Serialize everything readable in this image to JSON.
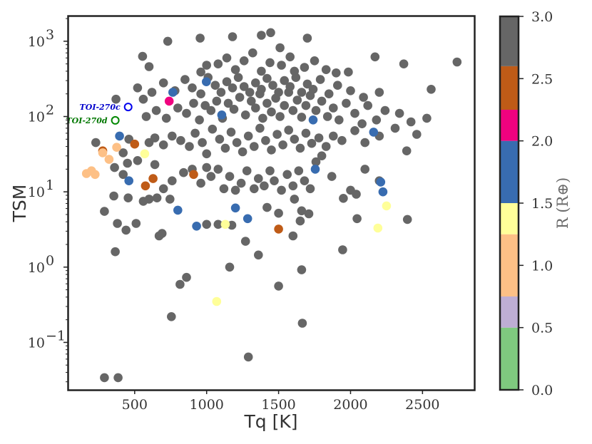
{
  "chart_data": {
    "type": "scatter",
    "xlabel": "Tq [K]",
    "ylabel": "TSM",
    "xlim": [
      40,
      2860
    ],
    "ylim_log10": [
      -1.63,
      3.33
    ],
    "yscale": "log",
    "grid": false,
    "x_ticks": [
      500,
      1000,
      1500,
      2000,
      2500
    ],
    "x_tick_labels": [
      "500",
      "1000",
      "1500",
      "2000",
      "2500"
    ],
    "y_ticks_log10": [
      -1,
      0,
      1,
      2,
      3
    ],
    "y_tick_labels": [
      "10",
      "10",
      "10",
      "10",
      "10"
    ],
    "y_tick_exponents": [
      "−1",
      "0",
      "1",
      "2",
      "3"
    ],
    "colorbar": {
      "label": "R (R⊕)",
      "range": [
        0,
        3.0
      ],
      "ticks": [
        0.0,
        0.5,
        1.0,
        1.5,
        2.0,
        2.5,
        3.0
      ],
      "tick_labels": [
        "0.0",
        "0.5",
        "1.0",
        "1.5",
        "2.0",
        "2.5",
        "3.0"
      ],
      "bins": [
        {
          "from": 0.0,
          "to": 0.5,
          "color": "#7fc97f"
        },
        {
          "from": 0.5,
          "to": 0.75,
          "color": "#beaed4"
        },
        {
          "from": 0.75,
          "to": 1.25,
          "color": "#fdc086"
        },
        {
          "from": 1.25,
          "to": 1.5,
          "color": "#ffff99"
        },
        {
          "from": 1.5,
          "to": 2.0,
          "color": "#386cb0"
        },
        {
          "from": 2.0,
          "to": 2.25,
          "color": "#f0027f"
        },
        {
          "from": 2.25,
          "to": 2.6,
          "color": "#bf5b17"
        },
        {
          "from": 2.6,
          "to": 3.0,
          "color": "#666666"
        }
      ]
    },
    "annotations": [
      {
        "text": "TOI-270c",
        "x": 455,
        "y": 134,
        "color": "#0000cc"
      },
      {
        "text": "TOI-270d",
        "x": 365,
        "y": 89,
        "color": "#007700"
      }
    ],
    "highlighted_points": [
      {
        "name": "TOI-270c",
        "x": 455,
        "y": 134,
        "edge_color": "#0000ee"
      },
      {
        "name": "TOI-270d",
        "x": 365,
        "y": 89,
        "edge_color": "#008800"
      }
    ],
    "colored_points": [
      {
        "x": 395,
        "y": 55,
        "r": 1.7
      },
      {
        "x": 460,
        "y": 14,
        "r": 1.7
      },
      {
        "x": 765,
        "y": 210,
        "r": 1.7
      },
      {
        "x": 800,
        "y": 5.7,
        "r": 1.7
      },
      {
        "x": 930,
        "y": 3.5,
        "r": 1.7
      },
      {
        "x": 1105,
        "y": 105,
        "r": 1.7
      },
      {
        "x": 1200,
        "y": 6.1,
        "r": 1.7
      },
      {
        "x": 1285,
        "y": 4.4,
        "r": 1.7
      },
      {
        "x": 1740,
        "y": 90,
        "r": 1.7
      },
      {
        "x": 1755,
        "y": 20,
        "r": 1.7
      },
      {
        "x": 2160,
        "y": 62,
        "r": 1.7
      },
      {
        "x": 2210,
        "y": 13.5,
        "r": 1.7
      },
      {
        "x": 2225,
        "y": 10,
        "r": 1.7
      },
      {
        "x": 998,
        "y": 290,
        "r": 1.7
      },
      {
        "x": 740,
        "y": 160,
        "r": 2.1
      },
      {
        "x": 278,
        "y": 35,
        "r": 2.5
      },
      {
        "x": 500,
        "y": 43,
        "r": 2.5
      },
      {
        "x": 575,
        "y": 12,
        "r": 2.5
      },
      {
        "x": 628,
        "y": 15,
        "r": 2.5
      },
      {
        "x": 910,
        "y": 17,
        "r": 2.5
      },
      {
        "x": 1500,
        "y": 3.2,
        "r": 2.5
      },
      {
        "x": 165,
        "y": 17.5,
        "r": 1.0
      },
      {
        "x": 200,
        "y": 19,
        "r": 1.0
      },
      {
        "x": 225,
        "y": 17,
        "r": 1.0
      },
      {
        "x": 278,
        "y": 33,
        "r": 1.0
      },
      {
        "x": 322,
        "y": 27,
        "r": 1.0
      },
      {
        "x": 375,
        "y": 39,
        "r": 1.0
      },
      {
        "x": 570,
        "y": 32,
        "r": 1.4
      },
      {
        "x": 1130,
        "y": 3.7,
        "r": 1.4
      },
      {
        "x": 1070,
        "y": 0.35,
        "r": 1.4
      },
      {
        "x": 2190,
        "y": 3.3,
        "r": 1.4
      },
      {
        "x": 2250,
        "y": 6.5,
        "r": 1.4
      }
    ],
    "gray_points": [
      {
        "x": 290,
        "y": 0.034
      },
      {
        "x": 385,
        "y": 0.034
      },
      {
        "x": 1290,
        "y": 0.064
      },
      {
        "x": 1665,
        "y": 0.18
      },
      {
        "x": 755,
        "y": 0.22
      },
      {
        "x": 1500,
        "y": 0.56
      },
      {
        "x": 815,
        "y": 0.59
      },
      {
        "x": 860,
        "y": 0.73
      },
      {
        "x": 1660,
        "y": 0.92
      },
      {
        "x": 1160,
        "y": 1.0
      },
      {
        "x": 1360,
        "y": 1.45
      },
      {
        "x": 1945,
        "y": 1.7
      },
      {
        "x": 365,
        "y": 1.6
      },
      {
        "x": 1270,
        "y": 2.2
      },
      {
        "x": 1600,
        "y": 2.6
      },
      {
        "x": 670,
        "y": 2.6
      },
      {
        "x": 690,
        "y": 2.8
      },
      {
        "x": 440,
        "y": 3.1
      },
      {
        "x": 380,
        "y": 3.8
      },
      {
        "x": 510,
        "y": 3.8
      },
      {
        "x": 1000,
        "y": 3.7
      },
      {
        "x": 1080,
        "y": 3.7
      },
      {
        "x": 1175,
        "y": 3.6
      },
      {
        "x": 1650,
        "y": 4.1
      },
      {
        "x": 1500,
        "y": 5.2
      },
      {
        "x": 1710,
        "y": 5.1
      },
      {
        "x": 2045,
        "y": 4.4
      },
      {
        "x": 2395,
        "y": 4.3
      },
      {
        "x": 290,
        "y": 5.5
      },
      {
        "x": 455,
        "y": 8.3
      },
      {
        "x": 600,
        "y": 8.0
      },
      {
        "x": 655,
        "y": 8.3
      },
      {
        "x": 745,
        "y": 8.0
      },
      {
        "x": 1420,
        "y": 6.2
      },
      {
        "x": 1610,
        "y": 8.0
      },
      {
        "x": 1660,
        "y": 5.6
      },
      {
        "x": 1950,
        "y": 8.2
      },
      {
        "x": 2040,
        "y": 9.3
      },
      {
        "x": 355,
        "y": 8.8
      },
      {
        "x": 560,
        "y": 7.5
      },
      {
        "x": 420,
        "y": 17
      },
      {
        "x": 450,
        "y": 24
      },
      {
        "x": 360,
        "y": 21
      },
      {
        "x": 520,
        "y": 26
      },
      {
        "x": 640,
        "y": 23
      },
      {
        "x": 700,
        "y": 11
      },
      {
        "x": 760,
        "y": 14
      },
      {
        "x": 840,
        "y": 18
      },
      {
        "x": 900,
        "y": 20
      },
      {
        "x": 960,
        "y": 13
      },
      {
        "x": 1000,
        "y": 21
      },
      {
        "x": 1030,
        "y": 16
      },
      {
        "x": 1080,
        "y": 20
      },
      {
        "x": 1120,
        "y": 11
      },
      {
        "x": 1160,
        "y": 16
      },
      {
        "x": 1200,
        "y": 10.5
      },
      {
        "x": 1240,
        "y": 13
      },
      {
        "x": 1280,
        "y": 19
      },
      {
        "x": 1330,
        "y": 11
      },
      {
        "x": 1360,
        "y": 15
      },
      {
        "x": 1400,
        "y": 12
      },
      {
        "x": 1440,
        "y": 19
      },
      {
        "x": 1470,
        "y": 14
      },
      {
        "x": 1520,
        "y": 10.5
      },
      {
        "x": 1560,
        "y": 17
      },
      {
        "x": 1600,
        "y": 12
      },
      {
        "x": 1640,
        "y": 19
      },
      {
        "x": 1680,
        "y": 14
      },
      {
        "x": 1720,
        "y": 11
      },
      {
        "x": 1760,
        "y": 25
      },
      {
        "x": 1800,
        "y": 30
      },
      {
        "x": 1870,
        "y": 16
      },
      {
        "x": 2000,
        "y": 10.5
      },
      {
        "x": 2100,
        "y": 20
      },
      {
        "x": 2200,
        "y": 14
      },
      {
        "x": 2390,
        "y": 35
      },
      {
        "x": 230,
        "y": 45
      },
      {
        "x": 420,
        "y": 33
      },
      {
        "x": 460,
        "y": 50
      },
      {
        "x": 600,
        "y": 45
      },
      {
        "x": 640,
        "y": 52
      },
      {
        "x": 700,
        "y": 42
      },
      {
        "x": 760,
        "y": 55
      },
      {
        "x": 820,
        "y": 48
      },
      {
        "x": 880,
        "y": 40
      },
      {
        "x": 920,
        "y": 60
      },
      {
        "x": 970,
        "y": 45
      },
      {
        "x": 1000,
        "y": 32
      },
      {
        "x": 1040,
        "y": 68
      },
      {
        "x": 1090,
        "y": 50
      },
      {
        "x": 1130,
        "y": 38
      },
      {
        "x": 1170,
        "y": 62
      },
      {
        "x": 1210,
        "y": 45
      },
      {
        "x": 1250,
        "y": 34
      },
      {
        "x": 1290,
        "y": 55
      },
      {
        "x": 1330,
        "y": 40
      },
      {
        "x": 1370,
        "y": 70
      },
      {
        "x": 1410,
        "y": 48
      },
      {
        "x": 1450,
        "y": 36
      },
      {
        "x": 1490,
        "y": 58
      },
      {
        "x": 1530,
        "y": 42
      },
      {
        "x": 1570,
        "y": 66
      },
      {
        "x": 1610,
        "y": 50
      },
      {
        "x": 1650,
        "y": 38
      },
      {
        "x": 1690,
        "y": 60
      },
      {
        "x": 1730,
        "y": 44
      },
      {
        "x": 1780,
        "y": 52
      },
      {
        "x": 1830,
        "y": 40
      },
      {
        "x": 1880,
        "y": 55
      },
      {
        "x": 1940,
        "y": 48
      },
      {
        "x": 2030,
        "y": 65
      },
      {
        "x": 2100,
        "y": 45
      },
      {
        "x": 2200,
        "y": 55
      },
      {
        "x": 2310,
        "y": 70
      },
      {
        "x": 2460,
        "y": 58
      },
      {
        "x": 2530,
        "y": 95
      },
      {
        "x": 580,
        "y": 100
      },
      {
        "x": 650,
        "y": 120
      },
      {
        "x": 720,
        "y": 95
      },
      {
        "x": 800,
        "y": 130
      },
      {
        "x": 860,
        "y": 110
      },
      {
        "x": 910,
        "y": 150
      },
      {
        "x": 950,
        "y": 90
      },
      {
        "x": 990,
        "y": 140
      },
      {
        "x": 1030,
        "y": 120
      },
      {
        "x": 1070,
        "y": 160
      },
      {
        "x": 1110,
        "y": 95
      },
      {
        "x": 1150,
        "y": 150
      },
      {
        "x": 1190,
        "y": 125
      },
      {
        "x": 1230,
        "y": 180
      },
      {
        "x": 1270,
        "y": 105
      },
      {
        "x": 1310,
        "y": 160
      },
      {
        "x": 1340,
        "y": 130
      },
      {
        "x": 1370,
        "y": 200
      },
      {
        "x": 1390,
        "y": 95
      },
      {
        "x": 1420,
        "y": 150
      },
      {
        "x": 1450,
        "y": 115
      },
      {
        "x": 1480,
        "y": 175
      },
      {
        "x": 1510,
        "y": 100
      },
      {
        "x": 1540,
        "y": 140
      },
      {
        "x": 1570,
        "y": 210
      },
      {
        "x": 1600,
        "y": 120
      },
      {
        "x": 1630,
        "y": 165
      },
      {
        "x": 1660,
        "y": 98
      },
      {
        "x": 1690,
        "y": 140
      },
      {
        "x": 1720,
        "y": 190
      },
      {
        "x": 1760,
        "y": 120
      },
      {
        "x": 1800,
        "y": 160
      },
      {
        "x": 1840,
        "y": 100
      },
      {
        "x": 1880,
        "y": 130
      },
      {
        "x": 1920,
        "y": 90
      },
      {
        "x": 1970,
        "y": 150
      },
      {
        "x": 2030,
        "y": 110
      },
      {
        "x": 2080,
        "y": 80
      },
      {
        "x": 2120,
        "y": 140
      },
      {
        "x": 2180,
        "y": 90
      },
      {
        "x": 2240,
        "y": 120
      },
      {
        "x": 2340,
        "y": 110
      },
      {
        "x": 2420,
        "y": 85
      },
      {
        "x": 620,
        "y": 210
      },
      {
        "x": 700,
        "y": 280
      },
      {
        "x": 780,
        "y": 220
      },
      {
        "x": 850,
        "y": 310
      },
      {
        "x": 900,
        "y": 240
      },
      {
        "x": 960,
        "y": 200
      },
      {
        "x": 1010,
        "y": 330
      },
      {
        "x": 1060,
        "y": 260
      },
      {
        "x": 1100,
        "y": 210
      },
      {
        "x": 1140,
        "y": 290
      },
      {
        "x": 1180,
        "y": 240
      },
      {
        "x": 1220,
        "y": 330
      },
      {
        "x": 1260,
        "y": 250
      },
      {
        "x": 1300,
        "y": 210
      },
      {
        "x": 1340,
        "y": 280
      },
      {
        "x": 1380,
        "y": 230
      },
      {
        "x": 1420,
        "y": 320
      },
      {
        "x": 1460,
        "y": 260
      },
      {
        "x": 1500,
        "y": 210
      },
      {
        "x": 1540,
        "y": 300
      },
      {
        "x": 1580,
        "y": 250
      },
      {
        "x": 1620,
        "y": 330
      },
      {
        "x": 1660,
        "y": 210
      },
      {
        "x": 1700,
        "y": 270
      },
      {
        "x": 1740,
        "y": 230
      },
      {
        "x": 1790,
        "y": 310
      },
      {
        "x": 1850,
        "y": 200
      },
      {
        "x": 1910,
        "y": 260
      },
      {
        "x": 2000,
        "y": 220
      },
      {
        "x": 2090,
        "y": 180
      },
      {
        "x": 2200,
        "y": 210
      },
      {
        "x": 2560,
        "y": 230
      },
      {
        "x": 370,
        "y": 170
      },
      {
        "x": 560,
        "y": 170
      },
      {
        "x": 520,
        "y": 240
      },
      {
        "x": 555,
        "y": 630
      },
      {
        "x": 600,
        "y": 460
      },
      {
        "x": 730,
        "y": 1000
      },
      {
        "x": 960,
        "y": 390
      },
      {
        "x": 1000,
        "y": 480
      },
      {
        "x": 1080,
        "y": 500
      },
      {
        "x": 1140,
        "y": 600
      },
      {
        "x": 1200,
        "y": 420
      },
      {
        "x": 1260,
        "y": 550
      },
      {
        "x": 1320,
        "y": 700
      },
      {
        "x": 1380,
        "y": 400
      },
      {
        "x": 1440,
        "y": 520
      },
      {
        "x": 1520,
        "y": 480
      },
      {
        "x": 1580,
        "y": 620
      },
      {
        "x": 1610,
        "y": 400
      },
      {
        "x": 1680,
        "y": 450
      },
      {
        "x": 1750,
        "y": 550
      },
      {
        "x": 1830,
        "y": 420
      },
      {
        "x": 1900,
        "y": 380
      },
      {
        "x": 1985,
        "y": 390
      },
      {
        "x": 2170,
        "y": 620
      },
      {
        "x": 2370,
        "y": 500
      },
      {
        "x": 2740,
        "y": 530
      },
      {
        "x": 955,
        "y": 1100
      },
      {
        "x": 1180,
        "y": 1150
      },
      {
        "x": 1380,
        "y": 1200
      },
      {
        "x": 1445,
        "y": 1300
      },
      {
        "x": 1700,
        "y": 1100
      },
      {
        "x": 1510,
        "y": 820
      }
    ]
  }
}
